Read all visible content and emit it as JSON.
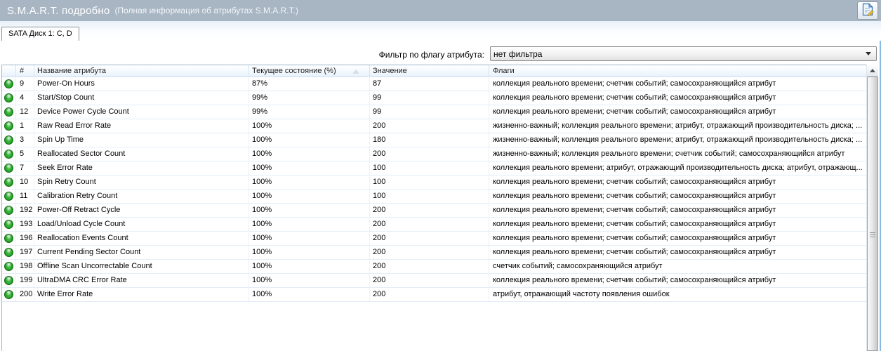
{
  "titlebar": {
    "title": "S.M.A.R.T. подробно",
    "subtitle": "(Полная информация об атрибутах S.M.A.R.T.)",
    "bg_color": "#a8b5c3",
    "icon": "report-document-icon"
  },
  "tabs": [
    {
      "label": "SATA Диск 1: C, D",
      "active": true
    }
  ],
  "filter": {
    "label": "Фильтр по флагу атрибута:",
    "value": "нет фильтра"
  },
  "table": {
    "headers": [
      "#",
      "Название атрибута",
      "Текущее состояние (%)",
      "Значение",
      "Флаги"
    ],
    "sorted_column": "Текущее состояние (%)",
    "sort_direction": "ascending",
    "status_icon": "green-ok-orb",
    "status_color": "#1d9a20",
    "rows": [
      {
        "id": "9",
        "name": "Power-On Hours",
        "current": "87%",
        "value": "87",
        "flags": "коллекция реального времени; счетчик событий; самосохраняющийся атрибут"
      },
      {
        "id": "4",
        "name": "Start/Stop Count",
        "current": "99%",
        "value": "99",
        "flags": "коллекция реального времени; счетчик событий; самосохраняющийся атрибут"
      },
      {
        "id": "12",
        "name": "Device Power Cycle Count",
        "current": "99%",
        "value": "99",
        "flags": "коллекция реального времени; счетчик событий; самосохраняющийся атрибут"
      },
      {
        "id": "1",
        "name": "Raw Read Error Rate",
        "current": "100%",
        "value": "200",
        "flags": "жизненно-важный; коллекция реального времени; атрибут, отражающий производительность диска; ..."
      },
      {
        "id": "3",
        "name": "Spin Up Time",
        "current": "100%",
        "value": "180",
        "flags": "жизненно-важный; коллекция реального времени; атрибут, отражающий производительность диска; ..."
      },
      {
        "id": "5",
        "name": "Reallocated Sector Count",
        "current": "100%",
        "value": "200",
        "flags": "жизненно-важный; коллекция реального времени; счетчик событий; самосохраняющийся атрибут"
      },
      {
        "id": "7",
        "name": "Seek Error Rate",
        "current": "100%",
        "value": "100",
        "flags": "коллекция реального времени; атрибут, отражающий производительность диска; атрибут, отражающ..."
      },
      {
        "id": "10",
        "name": "Spin Retry Count",
        "current": "100%",
        "value": "100",
        "flags": "коллекция реального времени; счетчик событий; самосохраняющийся атрибут"
      },
      {
        "id": "11",
        "name": "Calibration Retry Count",
        "current": "100%",
        "value": "100",
        "flags": "коллекция реального времени; счетчик событий; самосохраняющийся атрибут"
      },
      {
        "id": "192",
        "name": "Power-Off Retract Cycle",
        "current": "100%",
        "value": "200",
        "flags": "коллекция реального времени; счетчик событий; самосохраняющийся атрибут"
      },
      {
        "id": "193",
        "name": "Load/Unload Cycle Count",
        "current": "100%",
        "value": "200",
        "flags": "коллекция реального времени; счетчик событий; самосохраняющийся атрибут"
      },
      {
        "id": "196",
        "name": "Reallocation Events Count",
        "current": "100%",
        "value": "200",
        "flags": "коллекция реального времени; счетчик событий; самосохраняющийся атрибут"
      },
      {
        "id": "197",
        "name": "Current Pending Sector Count",
        "current": "100%",
        "value": "200",
        "flags": "коллекция реального времени; счетчик событий; самосохраняющийся атрибут"
      },
      {
        "id": "198",
        "name": "Offline Scan Uncorrectable Count",
        "current": "100%",
        "value": "200",
        "flags": "счетчик событий; самосохраняющийся атрибут"
      },
      {
        "id": "199",
        "name": "UltraDMA CRC Error Rate",
        "current": "100%",
        "value": "200",
        "flags": "коллекция реального времени; счетчик событий; самосохраняющийся атрибут"
      },
      {
        "id": "200",
        "name": "Write Error Rate",
        "current": "100%",
        "value": "200",
        "flags": "атрибут, отражающий частоту появления ошибок"
      }
    ]
  },
  "colors": {
    "titlebar_bg": "#a8b5c3",
    "table_border": "#9db6cb",
    "grid_line": "#e2edf9",
    "header_gradient_bottom": "#e7f1fb",
    "window_right_border": "#8ab9e2"
  }
}
